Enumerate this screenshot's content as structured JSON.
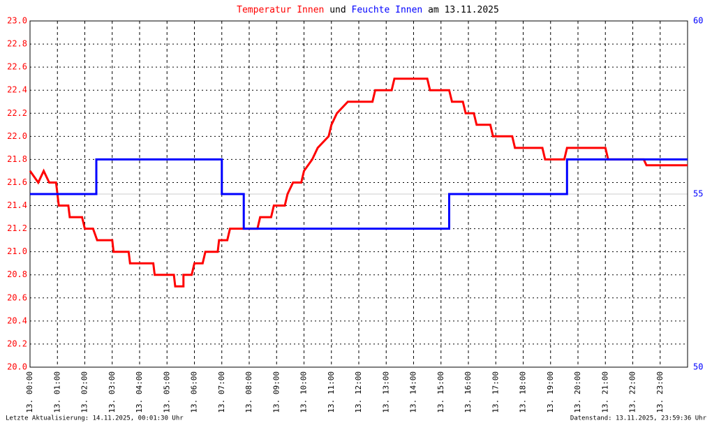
{
  "chart_data": {
    "type": "line",
    "title_join": "und",
    "title_date": "am 13.11.2025",
    "footer_left": "Letzte Aktualisierung: 14.11.2025, 00:01:30 Uhr",
    "footer_right": "Datenstand: 13.11.2025, 23:59:36 Uhr",
    "xlim": [
      0,
      24
    ],
    "xticks": [
      {
        "value": 0,
        "label": "13. 00:00"
      },
      {
        "value": 1,
        "label": "13. 01:00"
      },
      {
        "value": 2,
        "label": "13. 02:00"
      },
      {
        "value": 3,
        "label": "13. 03:00"
      },
      {
        "value": 4,
        "label": "13. 04:00"
      },
      {
        "value": 5,
        "label": "13. 05:00"
      },
      {
        "value": 6,
        "label": "13. 06:00"
      },
      {
        "value": 7,
        "label": "13. 07:00"
      },
      {
        "value": 8,
        "label": "13. 08:00"
      },
      {
        "value": 9,
        "label": "13. 09:00"
      },
      {
        "value": 10,
        "label": "13. 10:00"
      },
      {
        "value": 11,
        "label": "13. 11:00"
      },
      {
        "value": 12,
        "label": "13. 12:00"
      },
      {
        "value": 13,
        "label": "13. 13:00"
      },
      {
        "value": 14,
        "label": "13. 14:00"
      },
      {
        "value": 15,
        "label": "13. 15:00"
      },
      {
        "value": 16,
        "label": "13. 16:00"
      },
      {
        "value": 17,
        "label": "13. 17:00"
      },
      {
        "value": 18,
        "label": "13. 18:00"
      },
      {
        "value": 19,
        "label": "13. 19:00"
      },
      {
        "value": 20,
        "label": "13. 20:00"
      },
      {
        "value": 21,
        "label": "13. 21:00"
      },
      {
        "value": 22,
        "label": "13. 22:00"
      },
      {
        "value": 23,
        "label": "13. 23:00"
      }
    ],
    "ylim": [
      20,
      23
    ],
    "yticks": [
      {
        "value": 20,
        "label": "20.0"
      },
      20.2,
      20.4,
      20.6,
      20.8,
      {
        "value": 21,
        "label": "21.0"
      },
      21.2,
      21.4,
      21.6,
      21.8,
      {
        "value": 22,
        "label": "22.0"
      },
      22.2,
      22.4,
      22.6,
      22.8,
      {
        "value": 23,
        "label": "23.0"
      }
    ],
    "y2lim": [
      50,
      60
    ],
    "y2ticks": [
      50,
      55,
      60
    ],
    "grid": true,
    "series": [
      {
        "name": "Temperatur Innen",
        "color": "#ff0000",
        "x": [
          0,
          0.3,
          0.5,
          0.7,
          0.95,
          1.0,
          1.05,
          1.4,
          1.45,
          1.9,
          2.0,
          2.3,
          2.45,
          3.0,
          3.05,
          3.6,
          3.65,
          4.5,
          4.55,
          5.25,
          5.3,
          5.6,
          5.6,
          5.9,
          6.0,
          6.3,
          6.4,
          6.85,
          6.9,
          7.2,
          7.3,
          8.3,
          8.4,
          8.8,
          8.9,
          9.3,
          9.4,
          9.6,
          9.9,
          10.0,
          10.3,
          10.5,
          10.9,
          11.0,
          11.2,
          11.6,
          12.5,
          12.6,
          13.2,
          13.3,
          14.5,
          14.6,
          15.3,
          15.4,
          15.8,
          15.9,
          16.2,
          16.3,
          16.8,
          16.9,
          17.6,
          17.7,
          18.7,
          18.8,
          19.5,
          19.6,
          21.0,
          21.1,
          22.4,
          22.5,
          24
        ],
        "values": [
          21.7,
          21.6,
          21.7,
          21.6,
          21.6,
          21.5,
          21.4,
          21.4,
          21.3,
          21.3,
          21.2,
          21.2,
          21.1,
          21.1,
          21.0,
          21.0,
          20.9,
          20.9,
          20.8,
          20.8,
          20.7,
          20.7,
          20.8,
          20.8,
          20.9,
          20.9,
          21.0,
          21.0,
          21.1,
          21.1,
          21.2,
          21.2,
          21.3,
          21.3,
          21.4,
          21.4,
          21.5,
          21.6,
          21.6,
          21.7,
          21.8,
          21.9,
          22.0,
          22.1,
          22.2,
          22.3,
          22.3,
          22.4,
          22.4,
          22.5,
          22.5,
          22.4,
          22.4,
          22.3,
          22.3,
          22.2,
          22.2,
          22.1,
          22.1,
          22.0,
          22.0,
          21.9,
          21.9,
          21.8,
          21.8,
          21.9,
          21.9,
          21.8,
          21.8,
          21.75,
          21.75
        ]
      },
      {
        "name": "Feuchte Innen",
        "color": "#0000ff",
        "axis": "y2",
        "x": [
          0,
          2.42,
          2.42,
          7.0,
          7.0,
          7.8,
          7.8,
          15.3,
          15.3,
          19.6,
          19.6,
          24
        ],
        "values": [
          55,
          55,
          56,
          56,
          55,
          55,
          54,
          54,
          55,
          55,
          56,
          56
        ]
      }
    ]
  }
}
